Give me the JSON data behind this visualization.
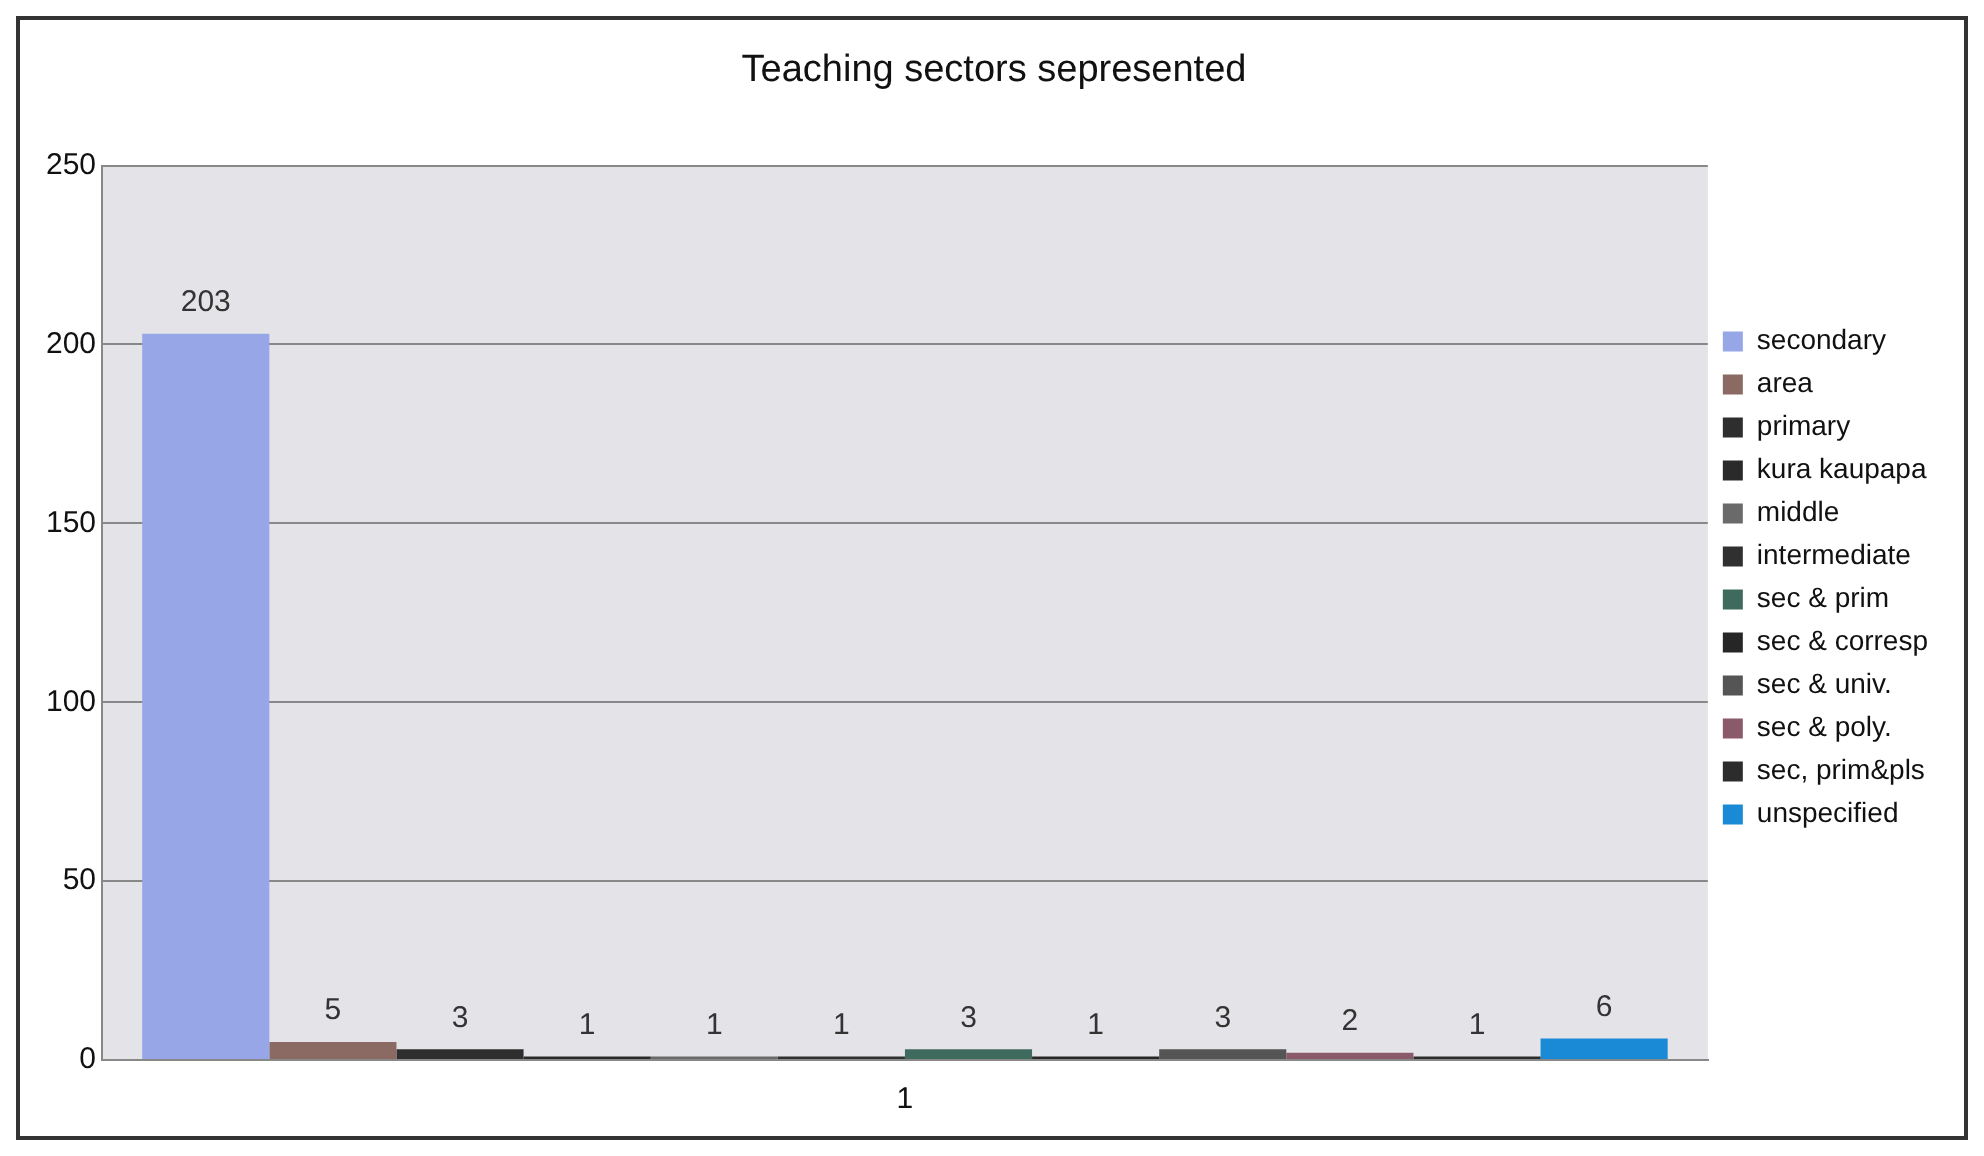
{
  "chart_data": {
    "type": "bar",
    "title": "Teaching sectors sepresented",
    "categories": [
      "1"
    ],
    "series": [
      {
        "name": "secondary",
        "color": "#97a6e6",
        "values": [
          203
        ]
      },
      {
        "name": "area",
        "color": "#8a6a62",
        "values": [
          5
        ]
      },
      {
        "name": "primary",
        "color": "#2e2e2e",
        "values": [
          3
        ]
      },
      {
        "name": "kura kaupapa",
        "color": "#2a2a2a",
        "values": [
          1
        ]
      },
      {
        "name": "middle",
        "color": "#6a6a6a",
        "values": [
          1
        ]
      },
      {
        "name": "intermediate",
        "color": "#303030",
        "values": [
          1
        ]
      },
      {
        "name": "sec & prim",
        "color": "#3f6a5e",
        "values": [
          3
        ]
      },
      {
        "name": "sec & corresp",
        "color": "#262626",
        "values": [
          1
        ]
      },
      {
        "name": "sec & univ.",
        "color": "#555555",
        "values": [
          3
        ]
      },
      {
        "name": "sec & poly.",
        "color": "#8a5a6a",
        "values": [
          2
        ]
      },
      {
        "name": "sec, prim&pls",
        "color": "#2c2c2c",
        "values": [
          1
        ]
      },
      {
        "name": "unspecified",
        "color": "#1a8ad6",
        "values": [
          6
        ]
      }
    ],
    "ylim": [
      0,
      250
    ],
    "yticks": [
      0,
      50,
      100,
      150,
      200,
      250
    ],
    "grid": "y",
    "legend": "right",
    "data_labels": true
  }
}
